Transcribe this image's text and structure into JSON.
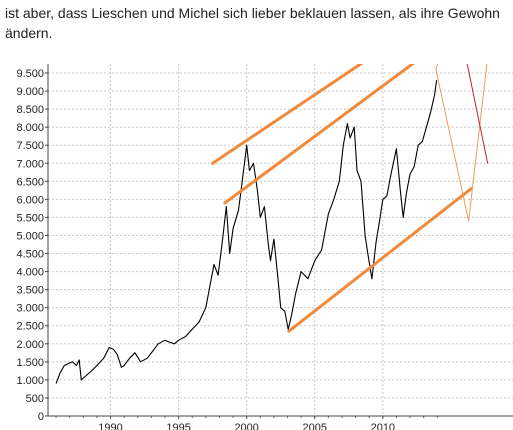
{
  "text": {
    "line1": "ist aber, dass Lieschen und Michel sich lieber beklauen lassen, als ihre Gewohn",
    "line2": "ändern."
  },
  "colors": {
    "price_line": "#000000",
    "channel": "#f08a3a",
    "channel_thin": "#f09a5a",
    "red_line": "#c0203a",
    "grid": "#c8c8c8"
  },
  "chart_data": {
    "type": "line",
    "title": "",
    "xlabel": "",
    "ylabel": "",
    "xlim": [
      1985.7,
      2014.2
    ],
    "ylim": [
      0,
      9500
    ],
    "grid": true,
    "x_ticks": [
      {
        "label": "1990",
        "value": 1990
      },
      {
        "label": "1995",
        "value": 1995
      },
      {
        "label": "2000",
        "value": 2000
      },
      {
        "label": "2005",
        "value": 2005
      },
      {
        "label": "2010",
        "value": 2010
      }
    ],
    "y_ticks": [
      {
        "label": "0",
        "value": 0
      },
      {
        "label": "500",
        "value": 500
      },
      {
        "label": "1.000",
        "value": 1000
      },
      {
        "label": "1.500",
        "value": 1500
      },
      {
        "label": "2.000",
        "value": 2000
      },
      {
        "label": "2.500",
        "value": 2500
      },
      {
        "label": "3.000",
        "value": 3000
      },
      {
        "label": "3.500",
        "value": 3500
      },
      {
        "label": "4.000",
        "value": 4000
      },
      {
        "label": "4.500",
        "value": 4500
      },
      {
        "label": "5.000",
        "value": 5000
      },
      {
        "label": "5.500",
        "value": 5500
      },
      {
        "label": "6.000",
        "value": 6000
      },
      {
        "label": "6.500",
        "value": 6500
      },
      {
        "label": "7.000",
        "value": 7000
      },
      {
        "label": "7.500",
        "value": 7500
      },
      {
        "label": "8.000",
        "value": 8000
      },
      {
        "label": "8.500",
        "value": 8500
      },
      {
        "label": "9.000",
        "value": 9000
      },
      {
        "label": "9.500",
        "value": 9500
      }
    ],
    "series": [
      {
        "x": [
          1986.0,
          1986.3,
          1986.6,
          1986.9,
          1987.2,
          1987.5,
          1987.7,
          1987.85,
          1988.0,
          1988.3,
          1988.6,
          1989.0,
          1989.5,
          1989.9,
          1990.2,
          1990.5,
          1990.8,
          1991.0,
          1991.4,
          1991.8,
          1992.2,
          1992.7,
          1993.0,
          1993.5,
          1994.0,
          1994.3,
          1994.7,
          1995.0,
          1995.5,
          1996.0,
          1996.5,
          1997.0,
          1997.3,
          1997.6,
          1997.9,
          1998.2,
          1998.5,
          1998.75,
          1999.0,
          1999.4,
          1999.8,
          2000.0,
          2000.2,
          2000.5,
          2000.8,
          2001.0,
          2001.3,
          2001.6,
          2001.75,
          2002.0,
          2002.3,
          2002.5,
          2002.8,
          2003.05,
          2003.3,
          2003.6,
          2004.0,
          2004.5,
          2005.0,
          2005.5,
          2006.0,
          2006.4,
          2006.8,
          2007.1,
          2007.4,
          2007.6,
          2007.9,
          2008.1,
          2008.4,
          2008.7,
          2008.9,
          2009.2,
          2009.5,
          2009.8,
          2010.0,
          2010.3,
          2010.6,
          2011.0,
          2011.3,
          2011.5,
          2011.75,
          2012.0,
          2012.3,
          2012.6,
          2012.9,
          2013.2,
          2013.5,
          2013.8,
          2013.95
        ],
        "y": [
          900,
          1200,
          1400,
          1450,
          1500,
          1400,
          1550,
          1000,
          1050,
          1150,
          1250,
          1400,
          1600,
          1900,
          1850,
          1700,
          1350,
          1400,
          1600,
          1750,
          1500,
          1600,
          1750,
          2000,
          2100,
          2050,
          2000,
          2100,
          2200,
          2400,
          2600,
          3000,
          3600,
          4200,
          3900,
          4800,
          5800,
          4500,
          5200,
          5700,
          6900,
          7500,
          6800,
          7000,
          6200,
          5500,
          5800,
          4700,
          4300,
          4900,
          3800,
          3000,
          2900,
          2400,
          2800,
          3400,
          4000,
          3800,
          4300,
          4600,
          5600,
          6000,
          6500,
          7500,
          8100,
          7700,
          8000,
          6800,
          6500,
          5000,
          4500,
          3800,
          4800,
          5500,
          6000,
          6100,
          6700,
          7400,
          6200,
          5500,
          6200,
          6700,
          6900,
          7500,
          7600,
          8000,
          8400,
          8900,
          9300
        ]
      }
    ],
    "annotations": {
      "upper_channel": [
        [
          1997.5,
          7000
        ],
        [
          2014.5,
          11300
        ]
      ],
      "middle_channel": [
        [
          1998.4,
          5900
        ],
        [
          2014.5,
          10400
        ]
      ],
      "lower_channel": [
        [
          2003.1,
          2350
        ],
        [
          2016.5,
          6300
        ]
      ],
      "thin_orange_1": [
        [
          2013.9,
          9600
        ],
        [
          2016.3,
          12500
        ]
      ],
      "thin_orange_2": [
        [
          2013.9,
          9600
        ],
        [
          2016.3,
          5400
        ]
      ],
      "thin_orange_3": [
        [
          2016.3,
          5400
        ],
        [
          2018.5,
          12500
        ]
      ],
      "thin_orange_4": [
        [
          2016.0,
          12300
        ],
        [
          2016.3,
          12500
        ]
      ],
      "red_line": [
        [
          2014.7,
          12500
        ],
        [
          2017.7,
          7000
        ]
      ]
    }
  }
}
